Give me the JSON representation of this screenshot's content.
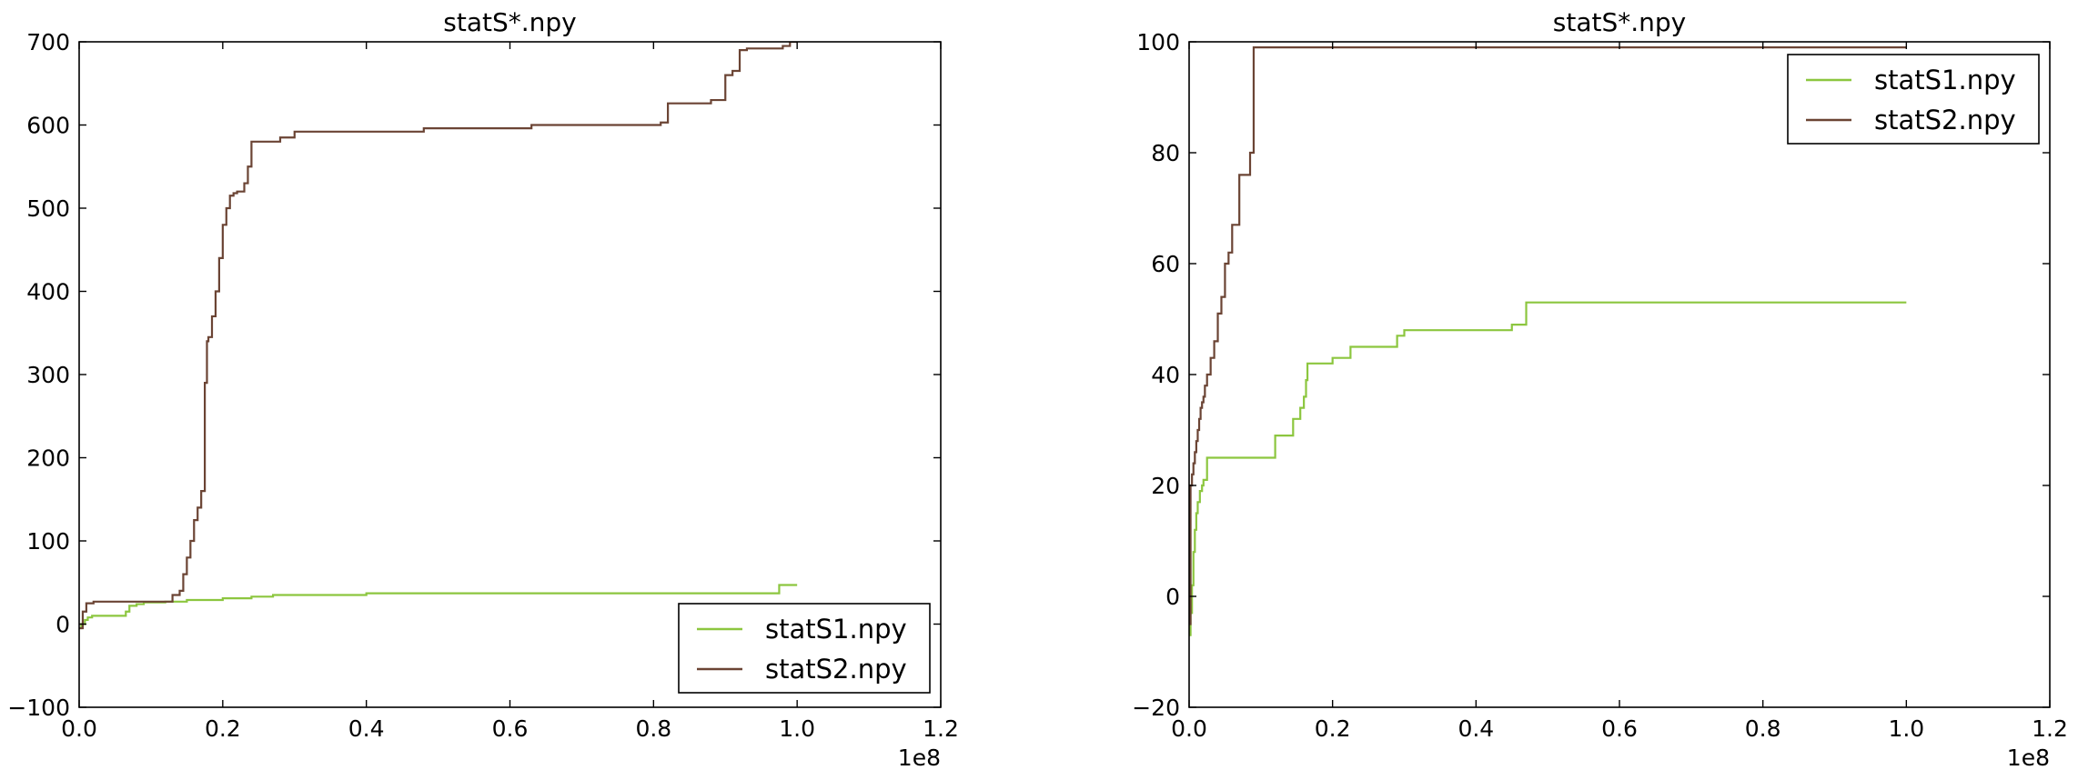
{
  "chart_data": [
    {
      "type": "line",
      "title": "statS*.npy",
      "xlabel": "",
      "ylabel": "",
      "x_offset_label": "1e8",
      "xlim": [
        0.0,
        1.2
      ],
      "ylim": [
        -100,
        700
      ],
      "xticks": [
        0.0,
        0.2,
        0.4,
        0.6,
        0.8,
        1.0,
        1.2
      ],
      "yticks": [
        -100,
        0,
        100,
        200,
        300,
        400,
        500,
        600,
        700
      ],
      "xtick_labels": [
        "0.0",
        "0.2",
        "0.4",
        "0.6",
        "0.8",
        "1.0",
        "1.2"
      ],
      "ytick_labels": [
        "−100",
        "0",
        "100",
        "200",
        "300",
        "400",
        "500",
        "600",
        "700"
      ],
      "grid": false,
      "legend_position": "lower-right",
      "series": [
        {
          "name": "statS1.npy",
          "color": "#8cc63f",
          "step": true,
          "x": [
            0,
            0.003,
            0.008,
            0.012,
            0.018,
            0.06,
            0.065,
            0.07,
            0.08,
            0.09,
            0.12,
            0.15,
            0.2,
            0.24,
            0.27,
            0.4,
            0.6,
            0.8,
            0.97,
            0.975,
            1.0
          ],
          "y": [
            -5,
            0,
            5,
            8,
            10,
            10,
            15,
            22,
            24,
            26,
            27,
            29,
            31,
            33,
            35,
            37,
            37,
            37,
            37,
            47,
            47
          ]
        },
        {
          "name": "statS2.npy",
          "color": "#6b4434",
          "step": true,
          "x": [
            0,
            0.005,
            0.01,
            0.02,
            0.12,
            0.13,
            0.14,
            0.145,
            0.15,
            0.155,
            0.16,
            0.165,
            0.17,
            0.175,
            0.178,
            0.18,
            0.185,
            0.19,
            0.195,
            0.2,
            0.205,
            0.21,
            0.215,
            0.22,
            0.23,
            0.235,
            0.24,
            0.28,
            0.3,
            0.48,
            0.63,
            0.8,
            0.81,
            0.82,
            0.88,
            0.9,
            0.91,
            0.92,
            0.93,
            0.98,
            0.99,
            1.0
          ],
          "y": [
            -5,
            15,
            25,
            27,
            27,
            35,
            40,
            60,
            80,
            100,
            125,
            140,
            160,
            290,
            340,
            345,
            370,
            400,
            440,
            480,
            500,
            515,
            518,
            520,
            530,
            550,
            580,
            585,
            592,
            596,
            600,
            600,
            603,
            626,
            630,
            660,
            665,
            690,
            692,
            695,
            700,
            700
          ]
        }
      ]
    },
    {
      "type": "line",
      "title": "statS*.npy",
      "xlabel": "",
      "ylabel": "",
      "x_offset_label": "1e8",
      "xlim": [
        0.0,
        1.2
      ],
      "ylim": [
        -20,
        100
      ],
      "xticks": [
        0.0,
        0.2,
        0.4,
        0.6,
        0.8,
        1.0,
        1.2
      ],
      "yticks": [
        -20,
        0,
        20,
        40,
        60,
        80,
        100
      ],
      "xtick_labels": [
        "0.0",
        "0.2",
        "0.4",
        "0.6",
        "0.8",
        "1.0",
        "1.2"
      ],
      "ytick_labels": [
        "−20",
        "0",
        "20",
        "40",
        "60",
        "80",
        "100"
      ],
      "grid": false,
      "legend_position": "upper-right",
      "series": [
        {
          "name": "statS1.npy",
          "color": "#8cc63f",
          "step": true,
          "x": [
            0,
            0.002,
            0.004,
            0.006,
            0.008,
            0.01,
            0.012,
            0.015,
            0.018,
            0.02,
            0.025,
            0.03,
            0.12,
            0.145,
            0.155,
            0.16,
            0.163,
            0.165,
            0.17,
            0.2,
            0.225,
            0.26,
            0.29,
            0.3,
            0.42,
            0.45,
            0.47,
            1.0
          ],
          "y": [
            -7,
            -3,
            2,
            8,
            12,
            15,
            17,
            19,
            20,
            21,
            25,
            25,
            29,
            32,
            34,
            36,
            39,
            42,
            42,
            43,
            45,
            45,
            47,
            48,
            48,
            49,
            53,
            53
          ]
        },
        {
          "name": "statS2.npy",
          "color": "#6b4434",
          "step": true,
          "x": [
            0,
            0.002,
            0.004,
            0.006,
            0.008,
            0.01,
            0.012,
            0.014,
            0.016,
            0.018,
            0.02,
            0.022,
            0.025,
            0.03,
            0.035,
            0.04,
            0.045,
            0.05,
            0.055,
            0.06,
            0.065,
            0.07,
            0.08,
            0.085,
            0.09,
            0.2,
            1.0
          ],
          "y": [
            -5,
            20,
            22,
            24,
            26,
            28,
            30,
            32,
            34,
            35,
            36,
            38,
            40,
            43,
            46,
            51,
            54,
            60,
            62,
            67,
            67,
            76,
            76,
            80,
            99,
            99,
            99
          ]
        }
      ]
    }
  ]
}
